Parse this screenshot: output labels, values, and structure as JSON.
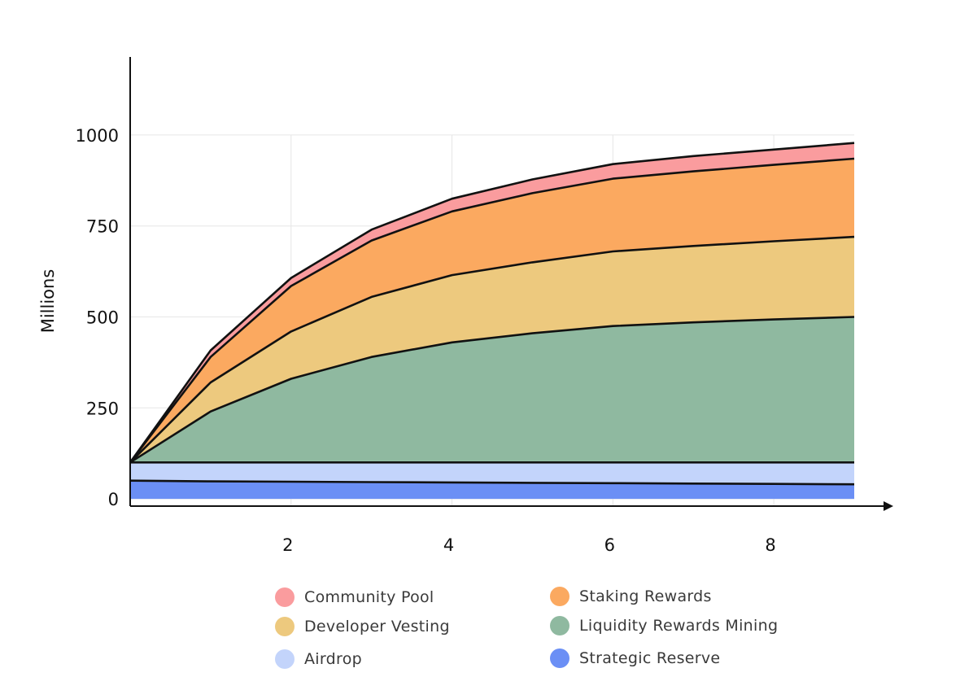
{
  "chart_data": {
    "type": "area",
    "stacked": true,
    "title": "",
    "xlabel": "",
    "ylabel": "Millions",
    "x": [
      0,
      1,
      2,
      3,
      4,
      5,
      6,
      7,
      8,
      9
    ],
    "xlim": [
      0,
      9.5
    ],
    "ylim": [
      -20,
      1210
    ],
    "xticks": [
      2,
      4,
      6,
      8
    ],
    "yticks": [
      0,
      250,
      500,
      750,
      1000
    ],
    "grid": true,
    "legend_position": "bottom",
    "series": [
      {
        "name": "Strategic Reserve",
        "color": "#6b8ff5",
        "values": [
          50,
          48,
          47,
          46,
          45,
          44,
          43,
          42,
          41,
          40
        ]
      },
      {
        "name": "Airdrop",
        "color": "#c3d4fb",
        "values": [
          50,
          52,
          53,
          54,
          55,
          56,
          57,
          58,
          59,
          60
        ]
      },
      {
        "name": "Liquidity Rewards Mining",
        "color": "#8fb9a0",
        "values": [
          0,
          140,
          230,
          290,
          330,
          355,
          375,
          385,
          393,
          400
        ]
      },
      {
        "name": "Developer Vesting",
        "color": "#edc97e",
        "values": [
          0,
          80,
          130,
          165,
          185,
          195,
          205,
          210,
          215,
          220
        ]
      },
      {
        "name": "Staking Rewards",
        "color": "#fba960",
        "values": [
          0,
          70,
          125,
          155,
          175,
          190,
          200,
          205,
          210,
          215
        ]
      },
      {
        "name": "Community Pool",
        "color": "#fa9c9e",
        "values": [
          0,
          18,
          22,
          30,
          35,
          38,
          40,
          42,
          42,
          43
        ]
      }
    ],
    "legend_order": [
      "Community Pool",
      "Staking Rewards",
      "Developer Vesting",
      "Liquidity Rewards Mining",
      "Airdrop",
      "Strategic Reserve"
    ]
  }
}
